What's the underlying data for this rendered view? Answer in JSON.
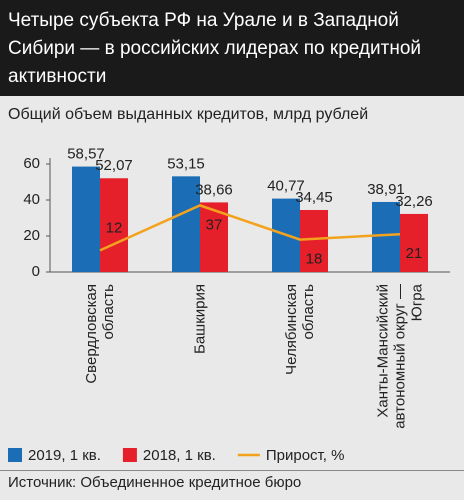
{
  "chart_data": {
    "type": "bar",
    "title": "Четыре субъекта РФ на Урале и в Западной Сибири — в российских лидерах по кредитной активности",
    "subtitle": "Общий объем выданных кредитов, млрд рублей",
    "categories": [
      "Свердловская область",
      "Башкирия",
      "Челябинская область",
      "Ханты-Мансийский автономный округ — Югра"
    ],
    "series": [
      {
        "name": "2019, 1 кв.",
        "color": "#1b6db5",
        "values": [
          58.57,
          53.15,
          40.77,
          38.91
        ],
        "value_labels": [
          "58,57",
          "53,15",
          "40,77",
          "38,91"
        ]
      },
      {
        "name": "2018, 1 кв.",
        "color": "#e5202b",
        "values": [
          52.07,
          38.66,
          34.45,
          32.26
        ],
        "value_labels": [
          "52,07",
          "38,66",
          "34,45",
          "32,26"
        ]
      },
      {
        "name": "Прирост, %",
        "type": "line",
        "color": "#f2a21c",
        "values": [
          12,
          37,
          18,
          21
        ]
      }
    ],
    "ylim": [
      0,
      60
    ],
    "yticks": [
      0,
      20,
      40,
      60
    ],
    "source": "Источник: Объединенное кредитное бюро"
  }
}
